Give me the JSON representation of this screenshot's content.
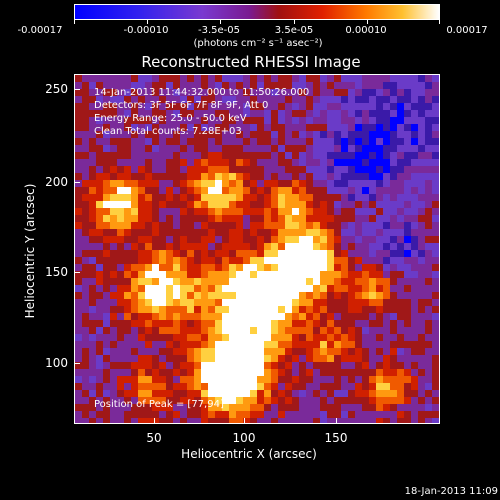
{
  "colorbar": {
    "labels": [
      "-0.00017",
      "-0.00010",
      "-3.5e-05",
      "3.5e-05",
      "0.00010",
      "0.00017"
    ],
    "units": "(photons cm⁻² s⁻¹ asec⁻²)"
  },
  "title": "Reconstructed RHESSI Image",
  "annotations": {
    "time": "14-Jan-2013 11:44:32.000 to 11:50:26.000",
    "detectors": "Detectors: 3F 5F 6F 7F 8F 9F, Att 0",
    "energy": "Energy Range: 25.0 - 50.0 keV",
    "clean": "Clean     Total counts: 7.28E+03",
    "peak": "Position of Peak = [77,94]"
  },
  "axes": {
    "xlabel": "Heliocentric X (arcsec)",
    "ylabel": "Heliocentric Y (arcsec)",
    "xticks": [
      "50",
      "100",
      "150"
    ],
    "yticks": [
      "250",
      "200",
      "150",
      "100"
    ]
  },
  "timestamp": "18-Jan-2013 11:09",
  "colors": {
    "background": "#000000",
    "palette": [
      "#0000ff",
      "#3a1aa8",
      "#6a3bc8",
      "#7a2a9a",
      "#a01818",
      "#d02000",
      "#f05a00",
      "#ff9a10",
      "#ffd040",
      "#ffffff"
    ]
  }
}
